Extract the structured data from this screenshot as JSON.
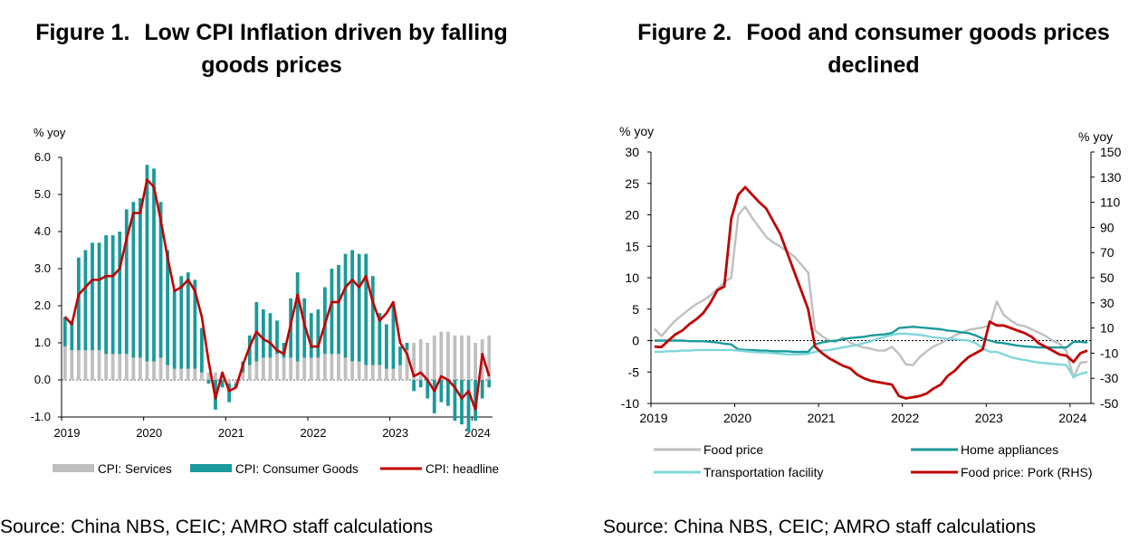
{
  "figure1": {
    "number": "Figure 1.",
    "title": "Low CPI Inflation driven by falling goods prices",
    "source": "Source: China NBS, CEIC; AMRO staff calculations"
  },
  "figure2": {
    "number": "Figure 2.",
    "title": "Food and consumer goods prices declined",
    "source": "Source: China NBS, CEIC; AMRO staff calculations"
  },
  "chart_data": [
    {
      "type": "bar",
      "title": "Low CPI Inflation driven by falling goods prices",
      "ylabel": "% yoy",
      "ylim": [
        -1.0,
        6.0
      ],
      "yticks": [
        "6.0",
        "5.0",
        "4.0",
        "3.0",
        "2.0",
        "1.0",
        "0.0",
        "-1.0"
      ],
      "xticks": [
        "2019",
        "2020",
        "2021",
        "2022",
        "2023",
        "2024"
      ],
      "x_start": "2019-01",
      "frequency": "monthly",
      "legend_position": "bottom",
      "colors": {
        "services": "#bfbfbf",
        "goods": "#1a9a9a",
        "headline": "#c00000"
      },
      "series": [
        {
          "name": "CPI: Services",
          "kind": "bar",
          "values": [
            0.9,
            0.8,
            0.8,
            0.8,
            0.8,
            0.8,
            0.7,
            0.7,
            0.7,
            0.7,
            0.6,
            0.6,
            0.5,
            0.5,
            0.6,
            0.4,
            0.3,
            0.3,
            0.3,
            0.3,
            0.2,
            0.2,
            0.2,
            0.2,
            -0.1,
            -0.1,
            0.2,
            0.4,
            0.5,
            0.6,
            0.6,
            0.7,
            0.6,
            0.6,
            0.5,
            0.6,
            0.6,
            0.6,
            0.7,
            0.7,
            0.7,
            0.6,
            0.5,
            0.5,
            0.4,
            0.4,
            0.4,
            0.3,
            0.3,
            0.4,
            0.8,
            1.0,
            1.1,
            1.0,
            1.2,
            1.3,
            1.3,
            1.2,
            1.2,
            1.2,
            1.0,
            1.1,
            1.2
          ]
        },
        {
          "name": "CPI: Consumer Goods",
          "kind": "bar",
          "values": [
            0.8,
            0.8,
            2.5,
            2.7,
            2.9,
            2.9,
            3.2,
            3.2,
            3.3,
            3.9,
            4.2,
            4.3,
            5.3,
            5.2,
            4.2,
            3.1,
            2.1,
            2.5,
            2.6,
            2.4,
            1.2,
            -0.1,
            -0.8,
            -0.2,
            -0.5,
            -0.1,
            0.3,
            0.8,
            1.6,
            1.3,
            1.2,
            0.9,
            0.4,
            1.6,
            2.4,
            1.6,
            1.2,
            1.3,
            1.8,
            2.3,
            2.4,
            2.8,
            3.0,
            2.9,
            3.0,
            2.4,
            1.4,
            1.2,
            1.7,
            0.5,
            0.2,
            -0.3,
            -0.2,
            -0.5,
            -0.9,
            -0.6,
            -0.7,
            -1.1,
            -1.2,
            -1.4,
            -1.1,
            -0.5,
            -0.2
          ]
        },
        {
          "name": "CPI: headline",
          "kind": "line",
          "values": [
            1.7,
            1.5,
            2.3,
            2.5,
            2.7,
            2.7,
            2.8,
            2.8,
            3.0,
            3.8,
            4.5,
            4.5,
            5.4,
            5.2,
            4.3,
            3.3,
            2.4,
            2.5,
            2.7,
            2.4,
            1.7,
            0.5,
            -0.5,
            0.2,
            -0.3,
            -0.2,
            0.4,
            0.9,
            1.3,
            1.1,
            1.0,
            0.8,
            0.7,
            1.5,
            2.3,
            1.5,
            0.9,
            0.9,
            1.5,
            2.1,
            2.1,
            2.5,
            2.7,
            2.5,
            2.8,
            2.1,
            1.6,
            1.8,
            2.1,
            1.0,
            0.7,
            0.1,
            0.2,
            0.0,
            -0.3,
            0.1,
            0.0,
            -0.2,
            -0.5,
            -0.3,
            -0.8,
            0.7,
            0.1
          ]
        }
      ]
    },
    {
      "type": "line",
      "title": "Food and consumer goods prices declined",
      "ylabel": "% yoy",
      "y2label": "% yoy",
      "ylim": [
        -10,
        30
      ],
      "y2lim": [
        -50,
        150
      ],
      "yticks": [
        "30",
        "25",
        "20",
        "15",
        "10",
        "5",
        "0",
        "-5",
        "-10"
      ],
      "y2ticks": [
        "150",
        "130",
        "110",
        "90",
        "70",
        "50",
        "30",
        "10",
        "-10",
        "-30",
        "-50"
      ],
      "xticks": [
        "2019",
        "2020",
        "2021",
        "2022",
        "2023",
        "2024"
      ],
      "x_start": "2019-01",
      "frequency": "monthly",
      "legend_position": "bottom",
      "colors": {
        "food": "#bfbfbf",
        "appliances": "#1a9a9a",
        "transport": "#7fd6dc",
        "pork": "#c00000"
      },
      "series": [
        {
          "name": "Food price",
          "axis": "left",
          "values": [
            1.9,
            0.7,
            2.0,
            3.2,
            4.1,
            5.0,
            5.8,
            6.4,
            7.2,
            8.2,
            9.3,
            10.0,
            20.0,
            21.3,
            19.5,
            18.0,
            16.5,
            15.6,
            15.0,
            14.2,
            13.4,
            12.1,
            10.8,
            1.6,
            0.7,
            0.0,
            -0.2,
            0.5,
            -0.3,
            -0.8,
            -1.1,
            -1.3,
            -1.6,
            -1.6,
            -1.0,
            -2.1,
            -3.8,
            -3.9,
            -2.6,
            -1.7,
            -0.9,
            -0.4,
            0.2,
            0.8,
            1.3,
            1.7,
            1.9,
            2.1,
            2.4,
            6.2,
            4.1,
            3.2,
            2.5,
            2.3,
            1.8,
            1.3,
            0.7,
            0.0,
            -0.5,
            -1.7,
            -5.9,
            -3.5,
            -3.4
          ]
        },
        {
          "name": "Home appliances",
          "axis": "left",
          "values": [
            0.0,
            0.0,
            0.0,
            0.0,
            0.0,
            -0.1,
            -0.1,
            -0.1,
            -0.2,
            -0.3,
            -0.5,
            -0.6,
            -1.4,
            -1.5,
            -1.5,
            -1.6,
            -1.6,
            -1.7,
            -1.7,
            -1.7,
            -1.8,
            -1.8,
            -1.8,
            -0.6,
            -0.3,
            -0.1,
            0.0,
            0.2,
            0.4,
            0.5,
            0.6,
            0.8,
            0.9,
            1.0,
            1.2,
            2.0,
            2.1,
            2.2,
            2.1,
            2.0,
            1.9,
            1.8,
            1.6,
            1.5,
            1.3,
            1.2,
            0.8,
            0.3,
            0.0,
            -0.3,
            -0.4,
            -0.6,
            -0.8,
            -0.9,
            -1.0,
            -1.1,
            -1.1,
            -1.1,
            -1.1,
            -1.1,
            -0.2,
            -0.2,
            -0.3
          ]
        },
        {
          "name": "Transportation facility",
          "axis": "left",
          "values": [
            -1.8,
            -1.8,
            -1.7,
            -1.7,
            -1.6,
            -1.6,
            -1.5,
            -1.5,
            -1.5,
            -1.5,
            -1.5,
            -1.5,
            -1.6,
            -1.7,
            -1.8,
            -1.9,
            -1.9,
            -2.0,
            -2.1,
            -2.2,
            -2.2,
            -2.2,
            -2.1,
            -1.8,
            -1.6,
            -1.5,
            -1.3,
            -1.1,
            -0.9,
            -0.7,
            -0.4,
            -0.1,
            0.3,
            0.6,
            0.9,
            1.1,
            1.1,
            1.0,
            0.9,
            0.7,
            0.5,
            0.4,
            0.3,
            0.2,
            0.1,
            0.0,
            -0.4,
            -1.2,
            -1.8,
            -1.8,
            -2.2,
            -2.6,
            -2.9,
            -3.1,
            -3.3,
            -3.5,
            -3.6,
            -3.7,
            -3.8,
            -3.9,
            -5.8,
            -5.3,
            -5.0
          ]
        },
        {
          "name": "Food price: Pork (RHS)",
          "axis": "right",
          "values": [
            -4.8,
            -5.2,
            0.0,
            5.0,
            8.0,
            13.0,
            17.0,
            22.0,
            30.0,
            40.0,
            43.0,
            97.0,
            116.0,
            122.0,
            116.0,
            110.0,
            105.0,
            95.0,
            85.0,
            70.0,
            55.0,
            40.0,
            25.0,
            -5.0,
            -10.0,
            -14.0,
            -17.0,
            -20.0,
            -22.0,
            -27.0,
            -30.0,
            -32.0,
            -33.0,
            -34.0,
            -35.0,
            -44.0,
            -46.0,
            -45.0,
            -44.0,
            -42.0,
            -38.0,
            -35.0,
            -28.0,
            -24.0,
            -18.0,
            -13.0,
            -10.0,
            -7.0,
            15.0,
            12.0,
            12.0,
            10.0,
            8.0,
            6.0,
            3.0,
            -2.0,
            -5.0,
            -8.0,
            -11.0,
            -12.0,
            -17.0,
            -10.0,
            -8.0
          ]
        }
      ]
    }
  ]
}
